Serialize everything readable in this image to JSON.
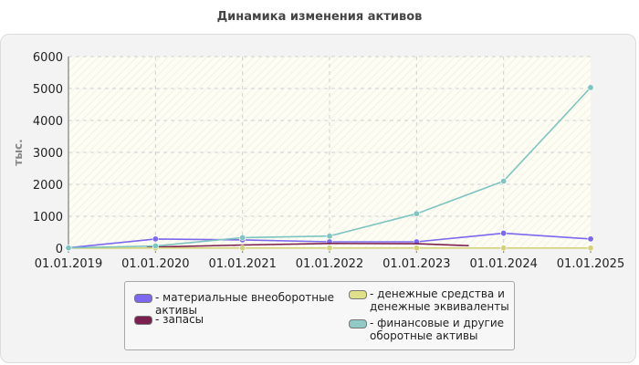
{
  "title": "Динамика изменения активов",
  "chart_data": {
    "type": "line",
    "title": "Динамика изменения активов",
    "xlabel": "",
    "ylabel": "тыс.",
    "categories": [
      "01.01.2019",
      "01.01.2020",
      "01.01.2021",
      "01.01.2022",
      "01.01.2023",
      "01.01.2024",
      "01.01.2025"
    ],
    "ylim": [
      0,
      6000
    ],
    "yticks": [
      0,
      1000,
      2000,
      3000,
      4000,
      5000,
      6000
    ],
    "grid": true,
    "legend_position": "bottom",
    "series": [
      {
        "name": "материальные внеоборотные активы",
        "color": "#7b68ee",
        "points": [
          [
            0,
            10
          ],
          [
            1,
            290
          ],
          [
            2,
            260
          ],
          [
            3,
            200
          ],
          [
            4,
            200
          ],
          [
            5,
            470
          ],
          [
            6,
            290
          ]
        ]
      },
      {
        "name": "запасы",
        "color": "#7b1f4e",
        "points": [
          [
            0.9,
            30
          ],
          [
            2,
            100
          ],
          [
            3,
            150
          ],
          [
            4,
            140
          ],
          [
            4.6,
            80
          ]
        ]
      },
      {
        "name": "денежные средства и денежные эквиваленты",
        "color": "#d4d27a",
        "points": [
          [
            0,
            0
          ],
          [
            1,
            5
          ],
          [
            2,
            5
          ],
          [
            3,
            5
          ],
          [
            4,
            5
          ],
          [
            5,
            5
          ],
          [
            6,
            5
          ]
        ]
      },
      {
        "name": "финансовые и другие оборотные активы",
        "color": "#7ec4c0",
        "points": [
          [
            0,
            10
          ],
          [
            1,
            70
          ],
          [
            2,
            330
          ],
          [
            3,
            380
          ],
          [
            4,
            1080
          ],
          [
            5,
            2100
          ],
          [
            6,
            5030
          ]
        ]
      }
    ]
  },
  "legend": [
    {
      "label": "- материальные внеоборотные\nактивы",
      "color": "#7b68ee"
    },
    {
      "label": "- запасы",
      "color": "#7b1f4e"
    },
    {
      "label": "- денежные средства и\nденежные эквиваленты",
      "color": "#e0e08a"
    },
    {
      "label": "- финансовые и другие\nоборотные активы",
      "color": "#8fcac6"
    }
  ]
}
